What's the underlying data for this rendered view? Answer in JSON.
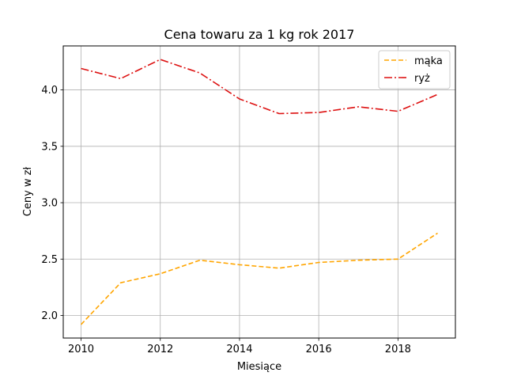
{
  "chart_data": {
    "type": "line",
    "title": "Cena towaru za 1 kg rok 2017",
    "xlabel": "Miesiące",
    "ylabel": "Ceny w zł",
    "x": [
      2010,
      2011,
      2012,
      2013,
      2014,
      2015,
      2016,
      2017,
      2018,
      2019
    ],
    "xlim": [
      2009.55,
      2019.45
    ],
    "ylim": [
      1.8,
      4.39
    ],
    "xticks": [
      2010,
      2012,
      2014,
      2016,
      2018
    ],
    "xtick_labels": [
      "2010",
      "2012",
      "2014",
      "2016",
      "2018"
    ],
    "yticks": [
      2.0,
      2.5,
      3.0,
      3.5,
      4.0
    ],
    "ytick_labels": [
      "2.0",
      "2.5",
      "3.0",
      "3.5",
      "4.0"
    ],
    "grid": true,
    "legend_position": "top-right",
    "series": [
      {
        "name": "mąka",
        "color": "#ffa500",
        "style": "dashed",
        "values": [
          1.92,
          2.29,
          2.37,
          2.49,
          2.45,
          2.42,
          2.47,
          2.49,
          2.5,
          2.73
        ]
      },
      {
        "name": "ryż",
        "color": "#dd1111",
        "style": "dashdot",
        "values": [
          4.19,
          4.1,
          4.27,
          4.15,
          3.92,
          3.79,
          3.8,
          3.85,
          3.81,
          3.96
        ]
      }
    ]
  }
}
